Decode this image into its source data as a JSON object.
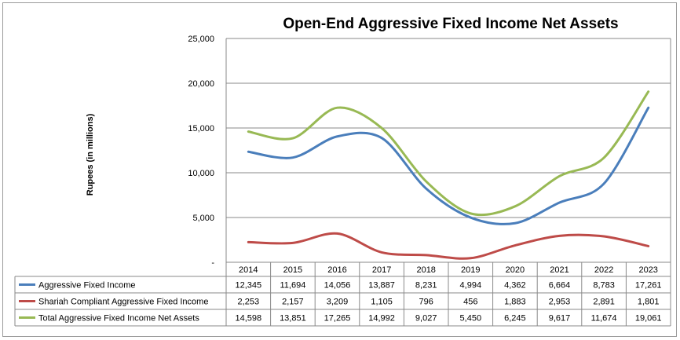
{
  "chart_data": {
    "type": "line",
    "title": "Open-End Aggressive Fixed Income Net Assets",
    "ylabel": "Rupees (in millions)",
    "ylim": [
      0,
      25000
    ],
    "yticks": [
      {
        "value": 0,
        "label": "-"
      },
      {
        "value": 5000,
        "label": "5,000"
      },
      {
        "value": 10000,
        "label": "10,000"
      },
      {
        "value": 15000,
        "label": "15,000"
      },
      {
        "value": 20000,
        "label": "20,000"
      },
      {
        "value": 25000,
        "label": "25,000"
      }
    ],
    "grid": true,
    "legend": "data-table",
    "categories": [
      "2014",
      "2015",
      "2016",
      "2017",
      "2018",
      "2019",
      "2020",
      "2021",
      "2022",
      "2023"
    ],
    "series": [
      {
        "name": "Aggressive Fixed Income",
        "color": "#4a7ebb",
        "values": [
          12345,
          11694,
          14056,
          13887,
          8231,
          4994,
          4362,
          6664,
          8783,
          17261
        ],
        "labels": [
          "12,345",
          "11,694",
          "14,056",
          "13,887",
          "8,231",
          "4,994",
          "4,362",
          "6,664",
          "8,783",
          "17,261"
        ]
      },
      {
        "name": "Shariah Compliant Aggressive Fixed Income",
        "color": "#be4b48",
        "values": [
          2253,
          2157,
          3209,
          1105,
          796,
          456,
          1883,
          2953,
          2891,
          1801
        ],
        "labels": [
          "2,253",
          "2,157",
          "3,209",
          "1,105",
          "796",
          "456",
          "1,883",
          "2,953",
          "2,891",
          "1,801"
        ]
      },
      {
        "name": "Total Aggressive Fixed Income Net Assets",
        "color": "#98b954",
        "values": [
          14598,
          13851,
          17265,
          14992,
          9027,
          5450,
          6245,
          9617,
          11674,
          19061
        ],
        "labels": [
          "14,598",
          "13,851",
          "17,265",
          "14,992",
          "9,027",
          "5,450",
          "6,245",
          "9,617",
          "11,674",
          "19,061"
        ]
      }
    ]
  }
}
